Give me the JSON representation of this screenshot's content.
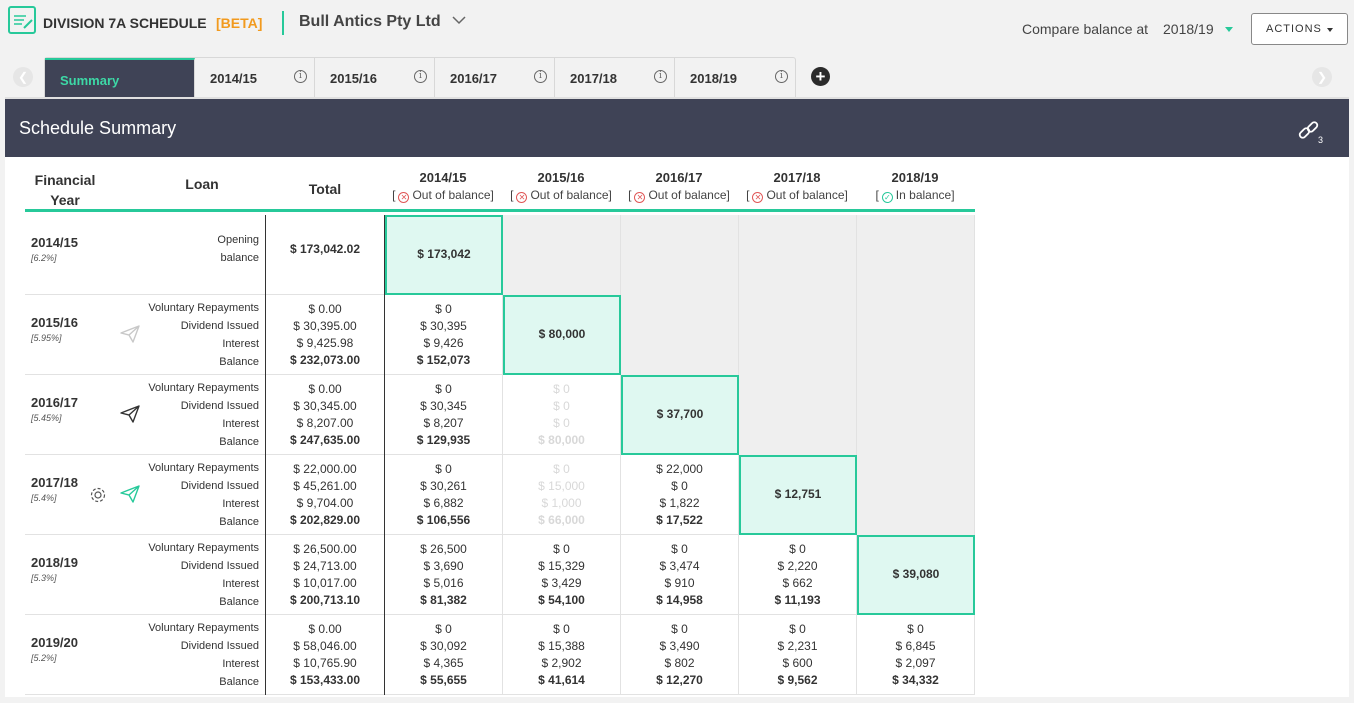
{
  "app": {
    "title": "DIVISION 7A SCHEDULE",
    "beta": "[BETA]",
    "company": "Bull Antics Pty Ltd"
  },
  "compare": {
    "label": "Compare balance at",
    "value": "2018/19"
  },
  "actions_label": "ACTIONS",
  "tabs": [
    {
      "label": "Summary",
      "active": true
    },
    {
      "label": "2014/15"
    },
    {
      "label": "2015/16"
    },
    {
      "label": "2016/17"
    },
    {
      "label": "2017/18"
    },
    {
      "label": "2018/19"
    }
  ],
  "panel": {
    "title": "Schedule Summary",
    "link_count": "3"
  },
  "colors": {
    "accent": "#27c99a",
    "header_bg": "#3f4356",
    "beta": "#f29a1e",
    "error": "#e05757"
  },
  "table": {
    "headers": {
      "financial_year": [
        "Financial",
        "Year"
      ],
      "loan": "Loan",
      "total": "Total"
    },
    "years": [
      {
        "year": "2014/15",
        "status": "Out of balance",
        "ok": false
      },
      {
        "year": "2015/16",
        "status": "Out of balance",
        "ok": false
      },
      {
        "year": "2016/17",
        "status": "Out of balance",
        "ok": false
      },
      {
        "year": "2017/18",
        "status": "Out of balance",
        "ok": false
      },
      {
        "year": "2018/19",
        "status": "In balance",
        "ok": true
      }
    ],
    "rows": [
      {
        "fy": "2014/15",
        "rate": "[6.2%]",
        "labels": [
          "Opening",
          "balance"
        ],
        "totals": [
          "$ 173,042.02"
        ],
        "cells": [
          {
            "type": "hl",
            "lines": [
              "$ 173,042"
            ]
          },
          {
            "type": "grey"
          },
          {
            "type": "grey"
          },
          {
            "type": "grey"
          },
          {
            "type": "grey"
          }
        ]
      },
      {
        "fy": "2015/16",
        "rate": "[5.95%]",
        "labels": [
          "Voluntary Repayments",
          "Dividend Issued",
          "Interest",
          "Balance"
        ],
        "totals": [
          "$ 0.00",
          "$ 30,395.00",
          "$ 9,425.98",
          "$ 232,073.00"
        ],
        "cells": [
          {
            "type": "n",
            "lines": [
              "$ 0",
              "$ 30,395",
              "$ 9,426",
              "$ 152,073"
            ]
          },
          {
            "type": "hl",
            "lines": [
              "$ 80,000"
            ]
          },
          {
            "type": "grey"
          },
          {
            "type": "grey"
          },
          {
            "type": "grey"
          }
        ]
      },
      {
        "fy": "2016/17",
        "rate": "[5.45%]",
        "labels": [
          "Voluntary Repayments",
          "Dividend Issued",
          "Interest",
          "Balance"
        ],
        "totals": [
          "$ 0.00",
          "$ 30,345.00",
          "$ 8,207.00",
          "$ 247,635.00"
        ],
        "cells": [
          {
            "type": "n",
            "lines": [
              "$ 0",
              "$ 30,345",
              "$ 8,207",
              "$ 129,935"
            ]
          },
          {
            "type": "faded",
            "lines": [
              "$ 0",
              "$ 0",
              "$ 0",
              "$ 80,000"
            ]
          },
          {
            "type": "hl",
            "lines": [
              "$ 37,700"
            ]
          },
          {
            "type": "grey"
          },
          {
            "type": "grey"
          }
        ]
      },
      {
        "fy": "2017/18",
        "rate": "[5.4%]",
        "labels": [
          "Voluntary Repayments",
          "Dividend Issued",
          "Interest",
          "Balance"
        ],
        "totals": [
          "$ 22,000.00",
          "$ 45,261.00",
          "$ 9,704.00",
          "$ 202,829.00"
        ],
        "cells": [
          {
            "type": "n",
            "lines": [
              "$ 0",
              "$ 30,261",
              "$ 6,882",
              "$ 106,556"
            ]
          },
          {
            "type": "faded",
            "lines": [
              "$ 0",
              "$ 15,000",
              "$ 1,000",
              "$ 66,000"
            ]
          },
          {
            "type": "n",
            "lines": [
              "$ 22,000",
              "$ 0",
              "$ 1,822",
              "$ 17,522"
            ]
          },
          {
            "type": "hl",
            "lines": [
              "$ 12,751"
            ]
          },
          {
            "type": "grey"
          }
        ]
      },
      {
        "fy": "2018/19",
        "rate": "[5.3%]",
        "labels": [
          "Voluntary Repayments",
          "Dividend Issued",
          "Interest",
          "Balance"
        ],
        "totals": [
          "$ 26,500.00",
          "$ 24,713.00",
          "$ 10,017.00",
          "$ 200,713.10"
        ],
        "cells": [
          {
            "type": "n",
            "lines": [
              "$ 26,500",
              "$ 3,690",
              "$ 5,016",
              "$ 81,382"
            ]
          },
          {
            "type": "n",
            "lines": [
              "$ 0",
              "$ 15,329",
              "$ 3,429",
              "$ 54,100"
            ]
          },
          {
            "type": "n",
            "lines": [
              "$ 0",
              "$ 3,474",
              "$ 910",
              "$ 14,958"
            ]
          },
          {
            "type": "n",
            "lines": [
              "$ 0",
              "$ 2,220",
              "$ 662",
              "$ 11,193"
            ]
          },
          {
            "type": "hl",
            "lines": [
              "$ 39,080"
            ]
          }
        ]
      },
      {
        "fy": "2019/20",
        "rate": "[5.2%]",
        "labels": [
          "Voluntary Repayments",
          "Dividend Issued",
          "Interest",
          "Balance"
        ],
        "totals": [
          "$ 0.00",
          "$ 58,046.00",
          "$ 10,765.90",
          "$ 153,433.00"
        ],
        "cells": [
          {
            "type": "n",
            "lines": [
              "$ 0",
              "$ 30,092",
              "$ 4,365",
              "$ 55,655"
            ]
          },
          {
            "type": "n",
            "lines": [
              "$ 0",
              "$ 15,388",
              "$ 2,902",
              "$ 41,614"
            ]
          },
          {
            "type": "n",
            "lines": [
              "$ 0",
              "$ 3,490",
              "$ 802",
              "$ 12,270"
            ]
          },
          {
            "type": "n",
            "lines": [
              "$ 0",
              "$ 2,231",
              "$ 600",
              "$ 9,562"
            ]
          },
          {
            "type": "n",
            "lines": [
              "$ 0",
              "$ 6,845",
              "$ 2,097",
              "$ 34,332"
            ]
          }
        ]
      }
    ]
  }
}
